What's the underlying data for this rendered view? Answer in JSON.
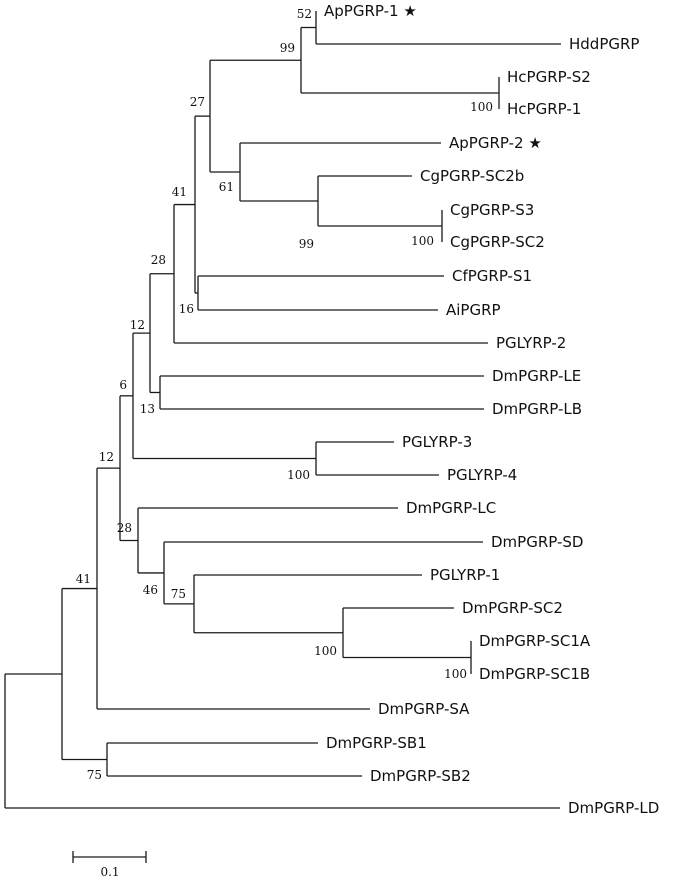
{
  "tree": {
    "leaves": [
      {
        "id": "ApPGRP1",
        "label": "ApPGRP-1",
        "marker": "★"
      },
      {
        "id": "HddPGRP",
        "label": "HddPGRP",
        "marker": ""
      },
      {
        "id": "HcPGRPS2",
        "label": "HcPGRP-S2",
        "marker": ""
      },
      {
        "id": "HcPGRP1",
        "label": "HcPGRP-1",
        "marker": ""
      },
      {
        "id": "ApPGRP2",
        "label": "ApPGRP-2",
        "marker": "★"
      },
      {
        "id": "CgPGRPSC2b",
        "label": "CgPGRP-SC2b",
        "marker": ""
      },
      {
        "id": "CgPGRPS3",
        "label": "CgPGRP-S3",
        "marker": ""
      },
      {
        "id": "CgPGRPSC2",
        "label": "CgPGRP-SC2",
        "marker": ""
      },
      {
        "id": "CfPGRPS1",
        "label": "CfPGRP-S1",
        "marker": ""
      },
      {
        "id": "AiPGRP",
        "label": "AiPGRP",
        "marker": ""
      },
      {
        "id": "PGLYRP2",
        "label": "PGLYRP-2",
        "marker": ""
      },
      {
        "id": "DmPGRPLE",
        "label": "DmPGRP-LE",
        "marker": ""
      },
      {
        "id": "DmPGRPLB",
        "label": "DmPGRP-LB",
        "marker": ""
      },
      {
        "id": "PGLYRP3",
        "label": "PGLYRP-3",
        "marker": ""
      },
      {
        "id": "PGLYRP4",
        "label": "PGLYRP-4",
        "marker": ""
      },
      {
        "id": "DmPGRPLC",
        "label": "DmPGRP-LC",
        "marker": ""
      },
      {
        "id": "DmPGRPSD",
        "label": "DmPGRP-SD",
        "marker": ""
      },
      {
        "id": "PGLYRP1",
        "label": "PGLYRP-1",
        "marker": ""
      },
      {
        "id": "DmPGRPSC2",
        "label": "DmPGRP-SC2",
        "marker": ""
      },
      {
        "id": "DmPGRPSC1A",
        "label": "DmPGRP-SC1A",
        "marker": ""
      },
      {
        "id": "DmPGRPSC1B",
        "label": "DmPGRP-SC1B",
        "marker": ""
      },
      {
        "id": "DmPGRPSA",
        "label": "DmPGRP-SA",
        "marker": ""
      },
      {
        "id": "DmPGRPSB1",
        "label": "DmPGRP-SB1",
        "marker": ""
      },
      {
        "id": "DmPGRPSB2",
        "label": "DmPGRP-SB2",
        "marker": ""
      },
      {
        "id": "DmPGRPLD",
        "label": "DmPGRP-LD",
        "marker": ""
      }
    ],
    "bootstrap": {
      "n_ap1_hdd": "52",
      "n_ap1_hc": "99",
      "n_hc": "100",
      "n_ap_group": "27",
      "n_ap2_cg": "61",
      "n_cg": "99",
      "n_cg_s3_sc2": "100",
      "n_cf_ai": "16",
      "n_mollusk": "41",
      "n_pglyrp2": "28",
      "n_le_lb": "13",
      "n_clade_a": "12",
      "n_pglyrp34": "100",
      "n_upper": "6",
      "n_sc1": "100",
      "n_sc": "100",
      "n_pglyrp1_sc": "75",
      "n_sd_group": "46",
      "n_lc_group": "28",
      "n_big": "12",
      "n_sa_group": "41",
      "n_sb": "75"
    },
    "scale_bar": {
      "label": "0.1"
    }
  }
}
